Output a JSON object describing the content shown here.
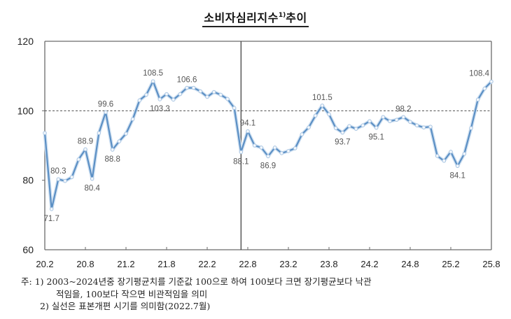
{
  "title": "소비자심리지수",
  "title_sup": "1)",
  "title_suffix": "추이",
  "notes": {
    "prefix": "주:",
    "line1": "1) 2003~2024년중 장기평균치를 기준값 100으로 하여 100보다 크면 장기평균보다 낙관",
    "line2": "적임을, 100보다 작으면 비관적임을 의미",
    "line3": "2) 실선은 표본개편 시기를 의미함(2022.7월)"
  },
  "chart_data": {
    "type": "line",
    "title": "소비자심리지수1)추이",
    "xlabel": "",
    "ylabel": "",
    "ylim": [
      60,
      120
    ],
    "yticks": [
      "60",
      "80",
      "100",
      "120"
    ],
    "yticks_values": [
      60,
      80,
      100,
      120
    ],
    "xticks": [
      "20.2",
      "20.8",
      "21.2",
      "21.8",
      "22.2",
      "22.8",
      "23.2",
      "23.8",
      "24.2",
      "24.8",
      "25.2",
      "25.8"
    ],
    "xticks_index": [
      0,
      6,
      12,
      18,
      24,
      30,
      36,
      42,
      48,
      54,
      60,
      66
    ],
    "reference_line": {
      "value": 100,
      "style": "dashed"
    },
    "vertical_line": {
      "index": 29,
      "label": "2022.7",
      "style": "solid"
    },
    "line_color": "#5b8fc4",
    "grid": false,
    "legend": "none",
    "series": [
      {
        "name": "소비자심리지수",
        "x": [
          "20.2",
          "20.3",
          "20.4",
          "20.5",
          "20.6",
          "20.7",
          "20.8",
          "20.9",
          "20.10",
          "20.11",
          "20.12",
          "21.1",
          "21.2",
          "21.3",
          "21.4",
          "21.5",
          "21.6",
          "21.7",
          "21.8",
          "21.9",
          "21.10",
          "21.11",
          "21.12",
          "22.1",
          "22.2",
          "22.3",
          "22.4",
          "22.5",
          "22.6",
          "22.7",
          "22.8",
          "22.9",
          "22.10",
          "22.11",
          "22.12",
          "23.1",
          "23.2",
          "23.3",
          "23.4",
          "23.5",
          "23.6",
          "23.7",
          "23.8",
          "23.9",
          "23.10",
          "23.11",
          "23.12",
          "24.1",
          "24.2",
          "24.3",
          "24.4",
          "24.5",
          "24.6",
          "24.7",
          "24.8",
          "24.9",
          "24.10",
          "24.11",
          "24.12",
          "25.1",
          "25.2",
          "25.3",
          "25.4",
          "25.5",
          "25.6",
          "25.7",
          "25.8"
        ],
        "values": [
          93.6,
          71.7,
          80.3,
          79.8,
          80.9,
          86.0,
          88.9,
          80.4,
          93.6,
          99.6,
          88.8,
          91.2,
          93.4,
          97.6,
          103.0,
          104.6,
          108.5,
          103.3,
          104.8,
          103.2,
          104.8,
          106.6,
          106.6,
          105.6,
          104.0,
          105.4,
          104.6,
          103.4,
          100.8,
          88.1,
          94.1,
          90.0,
          89.4,
          86.9,
          89.4,
          87.8,
          88.4,
          89.2,
          93.2,
          95.2,
          98.6,
          101.5,
          99.0,
          95.0,
          93.7,
          95.6,
          94.8,
          95.8,
          97.0,
          95.1,
          98.2,
          97.0,
          97.4,
          98.2,
          96.8,
          95.8,
          95.2,
          95.4,
          87.0,
          85.6,
          88.2,
          84.1,
          87.6,
          95.0,
          103.2,
          106.4,
          108.4
        ]
      }
    ],
    "annotations": [
      {
        "index": 1,
        "text": "71.7",
        "pos": "below"
      },
      {
        "index": 2,
        "text": "80.3",
        "pos": "above"
      },
      {
        "index": 6,
        "text": "88.9",
        "pos": "above"
      },
      {
        "index": 7,
        "text": "80.4",
        "pos": "below"
      },
      {
        "index": 9,
        "text": "99.6",
        "pos": "above"
      },
      {
        "index": 10,
        "text": "88.8",
        "pos": "below"
      },
      {
        "index": 16,
        "text": "108.5",
        "pos": "above"
      },
      {
        "index": 17,
        "text": "103.3",
        "pos": "below"
      },
      {
        "index": 21,
        "text": "106.6",
        "pos": "above"
      },
      {
        "index": 29,
        "text": "88.1",
        "pos": "below"
      },
      {
        "index": 30,
        "text": "94.1",
        "pos": "above"
      },
      {
        "index": 33,
        "text": "86.9",
        "pos": "below"
      },
      {
        "index": 41,
        "text": "101.5",
        "pos": "above"
      },
      {
        "index": 44,
        "text": "93.7",
        "pos": "below"
      },
      {
        "index": 49,
        "text": "95.1",
        "pos": "below"
      },
      {
        "index": 53,
        "text": "98.2",
        "pos": "above"
      },
      {
        "index": 61,
        "text": "84.1",
        "pos": "below"
      },
      {
        "index": 66,
        "text": "108.4",
        "pos": "above-left"
      }
    ]
  }
}
